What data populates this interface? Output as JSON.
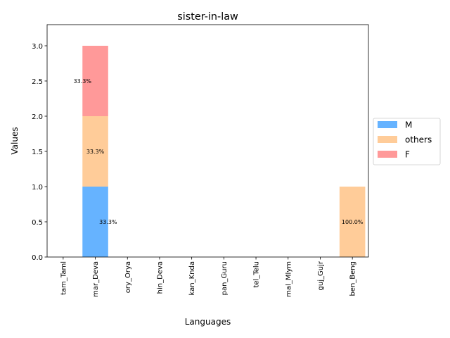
{
  "chart_data": {
    "type": "bar",
    "stacked": true,
    "title": "sister-in-law",
    "xlabel": "Languages",
    "ylabel": "Values",
    "categories": [
      "tam_Taml",
      "mar_Deva",
      "ory_Orya",
      "hin_Deva",
      "kan_Knda",
      "pan_Guru",
      "tel_Telu",
      "mal_Mlym",
      "guj_Gujr",
      "ben_Beng"
    ],
    "series": [
      {
        "name": "M",
        "color": "#66b3ff",
        "values": [
          0,
          1,
          0,
          0,
          0,
          0,
          0,
          0,
          0,
          0
        ]
      },
      {
        "name": "others",
        "color": "#ffcc99",
        "values": [
          0,
          1,
          0,
          0,
          0,
          0,
          0,
          0,
          0,
          1
        ]
      },
      {
        "name": "F",
        "color": "#ff9999",
        "values": [
          0,
          1,
          0,
          0,
          0,
          0,
          0,
          0,
          0,
          0
        ]
      }
    ],
    "data_labels": [
      {
        "category": "mar_Deva",
        "series": "M",
        "text": "33.3%"
      },
      {
        "category": "mar_Deva",
        "series": "others",
        "text": "33.3%"
      },
      {
        "category": "mar_Deva",
        "series": "F",
        "text": "33.3%"
      },
      {
        "category": "ben_Beng",
        "series": "others",
        "text": "100.0%"
      }
    ],
    "ylim": [
      0,
      3.3
    ],
    "yticks": [
      0.0,
      0.5,
      1.0,
      1.5,
      2.0,
      2.5,
      3.0
    ],
    "ytick_labels": [
      "0.0",
      "0.5",
      "1.0",
      "1.5",
      "2.0",
      "2.5",
      "3.0"
    ],
    "grid": false,
    "legend_position": "center-right"
  }
}
